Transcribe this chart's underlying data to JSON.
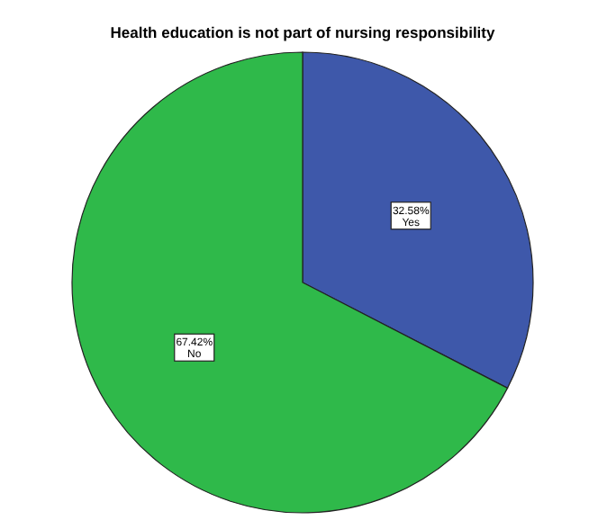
{
  "chart_data": {
    "type": "pie",
    "title": "Health education is not part of nursing responsibility",
    "categories": [
      "Yes",
      "No"
    ],
    "values": [
      32.58,
      67.42
    ],
    "colors": [
      "#3e58aa",
      "#2fb94a"
    ],
    "value_labels": [
      "32.58%",
      "67.42%"
    ]
  }
}
